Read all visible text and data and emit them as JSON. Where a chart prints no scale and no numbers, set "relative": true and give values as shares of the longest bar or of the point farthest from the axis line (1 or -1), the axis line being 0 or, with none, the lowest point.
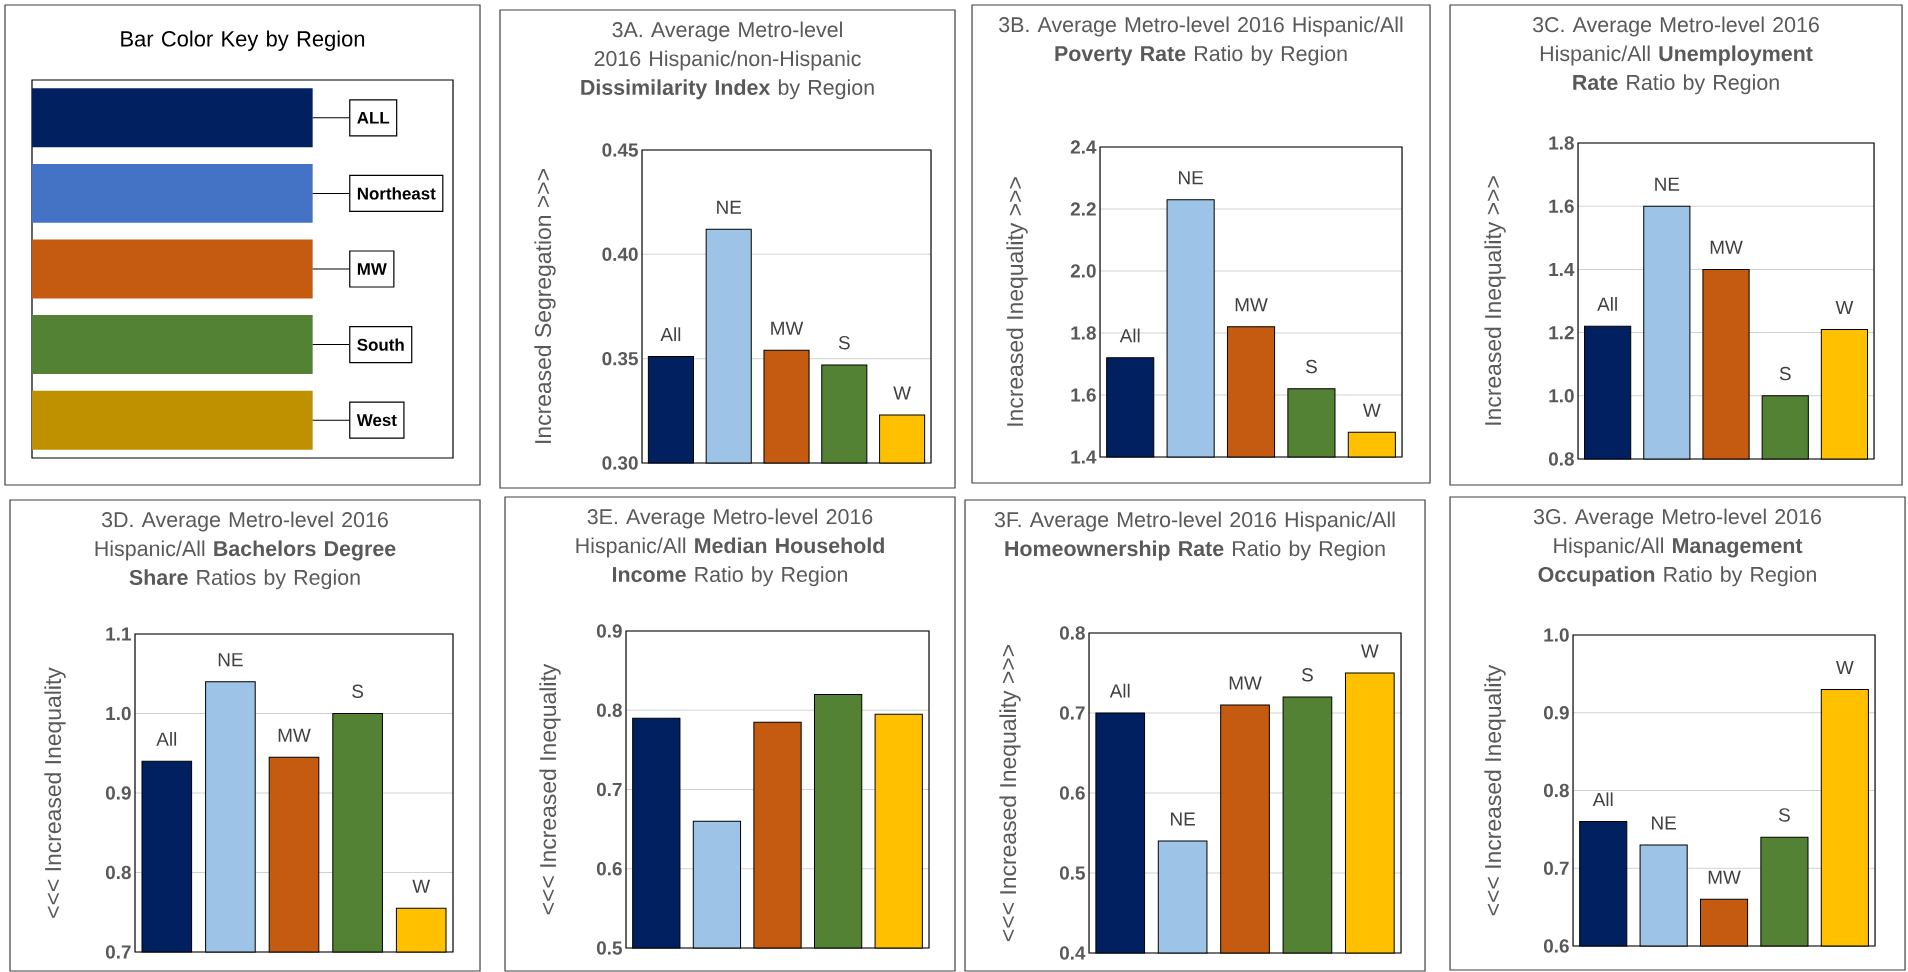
{
  "chart_data": [
    {
      "type": "bar",
      "orientation": "horizontal",
      "relative": true,
      "title": "Bar Color Key by Region",
      "categories": [
        "ALL",
        "Northeast",
        "MW",
        "South",
        "West"
      ],
      "values": [
        1,
        1,
        1,
        1,
        1
      ],
      "colors": [
        "#002060",
        "#4472c4",
        "#c55a11",
        "#548235",
        "#bf9000"
      ]
    },
    {
      "type": "bar",
      "title": "3A. Average Metro-level 2016 Hispanic/non-Hispanic **Dissimilarity Index** by Region",
      "ylabel": "Increased Segregation >>>",
      "categories": [
        "All",
        "NE",
        "MW",
        "S",
        "W"
      ],
      "values": [
        0.351,
        0.412,
        0.354,
        0.347,
        0.323
      ],
      "colors": [
        "#002060",
        "#9dc3e6",
        "#c55a11",
        "#548235",
        "#ffc000"
      ],
      "ylim": [
        0.3,
        0.45
      ],
      "yticks": [
        {
          "value": 0.3,
          "label": "0.30"
        },
        {
          "value": 0.35,
          "label": "0.35"
        },
        {
          "value": 0.4,
          "label": "0.40"
        },
        {
          "value": 0.45,
          "label": "0.45"
        }
      ],
      "grid": "y",
      "tick_labels": "y"
    },
    {
      "type": "bar",
      "title": "3B. Average Metro-level 2016 Hispanic/All **Poverty Rate** Ratio by Region",
      "ylabel": "Increased Inequality >>>",
      "categories": [
        "All",
        "NE",
        "MW",
        "S",
        "W"
      ],
      "values": [
        1.72,
        2.23,
        1.82,
        1.62,
        1.48
      ],
      "colors": [
        "#002060",
        "#9dc3e6",
        "#c55a11",
        "#548235",
        "#ffc000"
      ],
      "ylim": [
        1.4,
        2.4
      ],
      "yticks": [
        {
          "value": 1.4,
          "label": "1.4"
        },
        {
          "value": 1.6,
          "label": "1.6"
        },
        {
          "value": 1.8,
          "label": "1.8"
        },
        {
          "value": 2.0,
          "label": "2.0"
        },
        {
          "value": 2.2,
          "label": "2.2"
        },
        {
          "value": 2.4,
          "label": "2.4"
        }
      ],
      "grid": "y",
      "tick_labels": "y"
    },
    {
      "type": "bar",
      "title": "3C. Average Metro-level 2016 Hispanic/All **Unemployment Rate** Ratio by Region",
      "ylabel": "Increased Inequality >>>",
      "categories": [
        "All",
        "NE",
        "MW",
        "S",
        "W"
      ],
      "values": [
        1.22,
        1.6,
        1.4,
        1.0,
        1.21
      ],
      "colors": [
        "#002060",
        "#9dc3e6",
        "#c55a11",
        "#548235",
        "#ffc000"
      ],
      "ylim": [
        0.8,
        1.8
      ],
      "yticks": [
        {
          "value": 0.8,
          "label": "0.8"
        },
        {
          "value": 1.0,
          "label": "1.0"
        },
        {
          "value": 1.2,
          "label": "1.2"
        },
        {
          "value": 1.4,
          "label": "1.4"
        },
        {
          "value": 1.6,
          "label": "1.6"
        },
        {
          "value": 1.8,
          "label": "1.8"
        }
      ],
      "grid": "y",
      "tick_labels": "y"
    },
    {
      "type": "bar",
      "title": "3D. Average Metro-level 2016 Hispanic/All **Bachelors Degree Share** Ratios by Region",
      "ylabel": "<<< Increased Inequality",
      "categories": [
        "All",
        "NE",
        "MW",
        "S",
        "W"
      ],
      "values": [
        0.94,
        1.04,
        0.945,
        1.0,
        0.755
      ],
      "colors": [
        "#002060",
        "#9dc3e6",
        "#c55a11",
        "#548235",
        "#ffc000"
      ],
      "ylim": [
        0.7,
        1.1
      ],
      "yticks": [
        {
          "value": 0.7,
          "label": "0.7"
        },
        {
          "value": 0.8,
          "label": "0.8"
        },
        {
          "value": 0.9,
          "label": "0.9"
        },
        {
          "value": 1.0,
          "label": "1.0"
        },
        {
          "value": 1.1,
          "label": "1.1"
        }
      ],
      "grid": "y",
      "tick_labels": "y"
    },
    {
      "type": "bar",
      "title": "3E. Average Metro-level 2016 Hispanic/All **Median Household Income** Ratio by Region",
      "ylabel": "<<< Increased Inequality",
      "categories": [
        null,
        null,
        null,
        null,
        null
      ],
      "values": [
        0.79,
        0.66,
        0.785,
        0.82,
        0.795
      ],
      "colors": [
        "#002060",
        "#9dc3e6",
        "#c55a11",
        "#548235",
        "#ffc000"
      ],
      "ylim": [
        0.5,
        0.9
      ],
      "yticks": [
        {
          "value": 0.5,
          "label": "0.5"
        },
        {
          "value": 0.6,
          "label": "0.6"
        },
        {
          "value": 0.7,
          "label": "0.7"
        },
        {
          "value": 0.8,
          "label": "0.8"
        },
        {
          "value": 0.9,
          "label": "0.9"
        }
      ],
      "grid": "y",
      "tick_labels": "y"
    },
    {
      "type": "bar",
      "title": "3F. Average Metro-level 2016 Hispanic/All **Homeownership Rate** Ratio by Region",
      "ylabel": "<<< Increased Inequality >>>",
      "categories": [
        "All",
        "NE",
        "MW",
        "S",
        "W"
      ],
      "values": [
        0.7,
        0.54,
        0.71,
        0.72,
        0.75
      ],
      "colors": [
        "#002060",
        "#9dc3e6",
        "#c55a11",
        "#548235",
        "#ffc000"
      ],
      "ylim": [
        0.4,
        0.8
      ],
      "yticks": [
        {
          "value": 0.4,
          "label": "0.4"
        },
        {
          "value": 0.5,
          "label": "0.5"
        },
        {
          "value": 0.6,
          "label": "0.6"
        },
        {
          "value": 0.7,
          "label": "0.7"
        },
        {
          "value": 0.8,
          "label": "0.8"
        }
      ],
      "grid": "y",
      "tick_labels": "y"
    },
    {
      "type": "bar",
      "title": "3G. Average Metro-level 2016 Hispanic/All **Management Occupation** Ratio by Region",
      "ylabel": "<<<  Increased Inequality",
      "categories": [
        "All",
        "NE",
        "MW",
        "S",
        "W"
      ],
      "values": [
        0.76,
        0.73,
        0.66,
        0.74,
        0.93
      ],
      "colors": [
        "#002060",
        "#9dc3e6",
        "#c55a11",
        "#548235",
        "#ffc000"
      ],
      "ylim": [
        0.6,
        1.0
      ],
      "yticks": [
        {
          "value": 0.6,
          "label": "0.6"
        },
        {
          "value": 0.7,
          "label": "0.7"
        },
        {
          "value": 0.8,
          "label": "0.8"
        },
        {
          "value": 0.9,
          "label": "0.9"
        },
        {
          "value": 1.0,
          "label": "1.0"
        }
      ],
      "grid": "y",
      "tick_labels": "y"
    }
  ]
}
